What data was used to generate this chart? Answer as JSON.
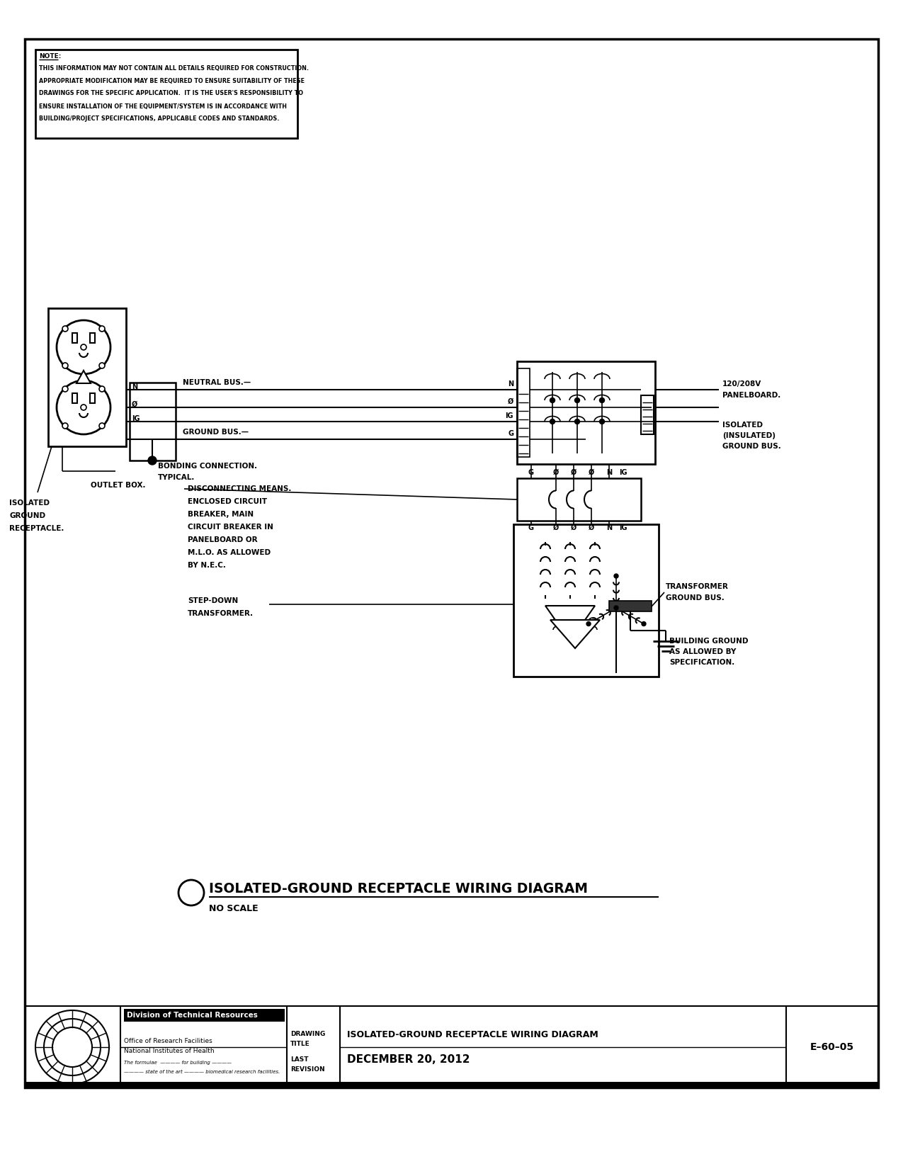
{
  "bg_color": "#ffffff",
  "line_color": "#000000",
  "title": "ISOLATED-GROUND RECEPTACLE WIRING DIAGRAM",
  "subtitle": "NO SCALE",
  "note_line1": "NOTE:",
  "note_line2": "THIS INFORMATION MAY NOT CONTAIN ALL DETAILS REQUIRED FOR CONSTRUCTION.",
  "note_line3": "APPROPRIATE MODIFICATION MAY BE REQUIRED TO ENSURE SUITABILITY OF THESE",
  "note_line4": "DRAWINGS FOR THE SPECIFIC APPLICATION.  IT IS THE USER'S RESPONSIBILITY TO",
  "note_line5": "ENSURE INSTALLATION OF THE EQUIPMENT/SYSTEM IS IN ACCORDANCE WITH",
  "note_line6": "BUILDING/PROJECT SPECIFICATIONS, APPLICABLE CODES AND STANDARDS.",
  "footer_title": "ISOLATED-GROUND RECEPTACLE WIRING DIAGRAM",
  "footer_date": "DECEMBER 20, 2012",
  "footer_drawing_number": "E–60–05",
  "footer_div": "Division of Technical Resources",
  "footer_office": "Office of Research Facilities",
  "footer_nih": "National Institutes of Health"
}
